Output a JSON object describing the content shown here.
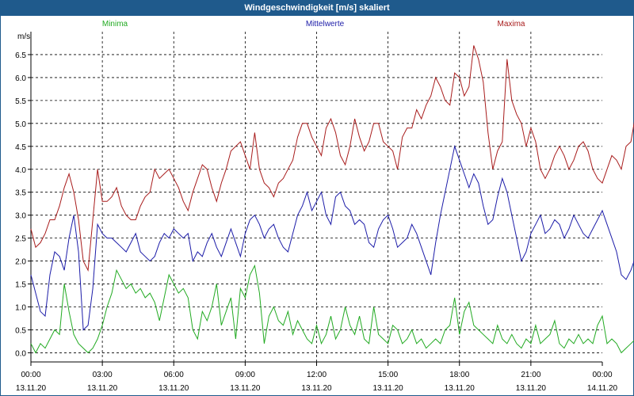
{
  "window": {
    "title": "Windgeschwindigkeit [m/s] skaliert"
  },
  "chart_data": {
    "type": "line",
    "title": "Windgeschwindigkeit [m/s] skaliert",
    "ylabel": "m/s",
    "ylim": [
      -0.2,
      7.0
    ],
    "yticks": [
      "0.0",
      "0.5",
      "1.0",
      "1.5",
      "2.0",
      "2.5",
      "3.0",
      "3.5",
      "4.0",
      "4.5",
      "5.0",
      "5.5",
      "6.0",
      "6.5"
    ],
    "xticks": [
      {
        "time": "00:00",
        "date": "13.11.20"
      },
      {
        "time": "03:00",
        "date": "13.11.20"
      },
      {
        "time": "06:00",
        "date": "13.11.20"
      },
      {
        "time": "09:00",
        "date": "13.11.20"
      },
      {
        "time": "12:00",
        "date": "13.11.20"
      },
      {
        "time": "15:00",
        "date": "13.11.20"
      },
      {
        "time": "18:00",
        "date": "13.11.20"
      },
      {
        "time": "21:00",
        "date": "13.11.20"
      },
      {
        "time": "00:00",
        "date": "14.11.20"
      }
    ],
    "grid": true,
    "legend_position": "top",
    "series": [
      {
        "name": "Minima",
        "color": "#22aa22",
        "x_start_hour": 0,
        "x_step_hours": 0.2,
        "values": [
          0.2,
          0.0,
          0.2,
          0.1,
          0.3,
          0.5,
          0.4,
          1.5,
          0.9,
          0.4,
          0.2,
          0.1,
          0.0,
          0.1,
          0.3,
          0.6,
          1.0,
          1.3,
          1.8,
          1.6,
          1.4,
          1.5,
          1.3,
          1.4,
          1.2,
          1.3,
          1.1,
          0.7,
          1.2,
          1.7,
          1.5,
          1.3,
          1.4,
          1.2,
          0.5,
          0.3,
          0.9,
          0.7,
          1.0,
          1.5,
          0.6,
          0.9,
          1.2,
          0.3,
          1.4,
          1.2,
          1.7,
          1.9,
          1.3,
          0.2,
          0.8,
          1.0,
          0.7,
          0.6,
          0.9,
          0.4,
          0.7,
          0.5,
          0.3,
          0.2,
          0.6,
          0.2,
          0.4,
          0.8,
          0.3,
          0.5,
          1.0,
          0.6,
          0.4,
          0.8,
          0.3,
          0.2,
          1.0,
          0.4,
          0.3,
          0.2,
          0.6,
          0.5,
          0.2,
          0.3,
          0.5,
          0.2,
          0.3,
          0.1,
          0.2,
          0.3,
          0.2,
          0.5,
          0.6,
          1.2,
          0.4,
          0.9,
          1.1,
          0.6,
          0.5,
          0.4,
          0.3,
          0.2,
          0.6,
          0.3,
          0.2,
          0.4,
          0.2,
          0.1,
          0.3,
          0.2,
          0.6,
          0.2,
          0.3,
          0.4,
          0.7,
          0.2,
          0.1,
          0.3,
          0.2,
          0.4,
          0.2,
          0.3,
          0.2,
          0.6,
          0.8,
          0.2,
          0.3,
          0.2,
          0.0,
          0.1,
          0.2,
          0.3,
          0.1,
          0.4,
          0.6,
          0.3,
          0.1,
          0.2,
          0.4,
          0.3,
          0.6,
          0.2,
          0.3,
          0.5,
          0.2,
          1.0,
          0.5,
          0.3,
          0.9,
          0.4,
          0.3,
          1.3,
          0.6,
          0.4,
          0.2,
          0.3,
          0.6,
          0.4,
          0.5,
          0.3,
          0.2,
          0.5,
          0.3,
          0.2,
          0.4,
          0.6,
          0.5,
          1.3,
          0.6,
          0.4,
          0.6,
          0.3,
          0.2,
          0.5,
          0.9,
          0.4,
          0.8,
          0.5,
          0.7,
          0.9,
          0.4,
          0.5,
          0.2,
          0.4,
          0.6,
          0.4,
          0.2,
          0.6,
          0.3,
          0.2,
          0.5,
          0.6,
          1.1,
          0.3,
          0.2,
          0.6,
          0.4,
          0.1,
          0.2,
          0.9,
          1.1,
          0.5,
          0.6,
          1.0,
          0.4,
          0.7,
          0.2,
          0.4,
          0.9,
          0.8,
          1.4,
          1.2,
          1.8,
          0.7,
          1.3,
          0.7,
          0.6,
          0.5,
          0.9,
          0.8,
          0.7,
          0.5,
          0.8
        ]
      },
      {
        "name": "Mittelwerte",
        "color": "#1c1ca8",
        "x_start_hour": 0,
        "x_step_hours": 0.2,
        "values": [
          1.7,
          1.3,
          0.9,
          0.8,
          1.7,
          2.2,
          2.1,
          1.8,
          2.5,
          3.0,
          2.2,
          0.5,
          0.6,
          1.4,
          2.8,
          2.6,
          2.5,
          2.5,
          2.4,
          2.3,
          2.2,
          2.4,
          2.6,
          2.2,
          2.1,
          2.0,
          2.1,
          2.4,
          2.6,
          2.5,
          2.7,
          2.6,
          2.5,
          2.6,
          2.0,
          2.2,
          2.1,
          2.4,
          2.6,
          2.3,
          2.1,
          2.4,
          2.7,
          2.4,
          2.1,
          2.6,
          2.9,
          3.0,
          2.8,
          2.5,
          2.7,
          2.8,
          2.5,
          2.3,
          2.2,
          2.6,
          3.0,
          3.2,
          3.5,
          3.1,
          3.3,
          3.5,
          3.0,
          2.8,
          3.4,
          3.5,
          3.2,
          3.1,
          2.8,
          2.9,
          2.8,
          2.4,
          2.3,
          2.7,
          2.9,
          3.0,
          2.7,
          2.3,
          2.4,
          2.5,
          2.8,
          2.6,
          2.3,
          2.0,
          1.7,
          2.4,
          3.0,
          3.5,
          4.0,
          4.5,
          4.2,
          3.9,
          3.6,
          3.9,
          3.7,
          3.2,
          2.8,
          2.9,
          3.4,
          3.8,
          3.5,
          3.0,
          2.5,
          2.0,
          2.2,
          2.6,
          2.8,
          3.0,
          2.6,
          2.7,
          2.9,
          2.8,
          2.5,
          2.7,
          3.0,
          2.8,
          2.6,
          2.5,
          2.7,
          2.9,
          3.1,
          2.8,
          2.5,
          2.2,
          1.7,
          1.6,
          1.8,
          2.1,
          2.3,
          2.1,
          2.3,
          2.6,
          2.3,
          2.1,
          2.5,
          2.8,
          2.6,
          2.9,
          2.5,
          2.2,
          2.1,
          2.4,
          2.2,
          2.5,
          2.6,
          2.9,
          2.7,
          2.6,
          2.5,
          2.2,
          2.4,
          2.8,
          2.6,
          2.3,
          2.5,
          2.4,
          2.2,
          2.3,
          2.6,
          2.5,
          2.7,
          2.6,
          2.8,
          3.0,
          2.5,
          2.0,
          2.2,
          1.9,
          1.9,
          1.9,
          2.0,
          2.6,
          2.9,
          2.7,
          2.4,
          2.2,
          2.5,
          2.3,
          2.1,
          2.0,
          2.2,
          2.5,
          2.4,
          2.8,
          2.5,
          2.3,
          2.1,
          2.2,
          2.5,
          2.7,
          2.8,
          2.2,
          2.0,
          1.7,
          2.2,
          2.7,
          2.2,
          1.8,
          2.2,
          2.5,
          2.6,
          2.8,
          3.5,
          3.5,
          3.4,
          3.0,
          2.7,
          2.9,
          3.0,
          2.5,
          2.8
        ]
      },
      {
        "name": "Maxima",
        "color": "#a81c1c",
        "x_start_hour": 0,
        "x_step_hours": 0.2,
        "values": [
          2.7,
          2.3,
          2.4,
          2.6,
          2.9,
          2.9,
          3.2,
          3.6,
          3.9,
          3.5,
          2.9,
          2.0,
          1.8,
          2.9,
          4.0,
          3.3,
          3.3,
          3.4,
          3.6,
          3.2,
          3.0,
          2.9,
          2.9,
          3.2,
          3.4,
          3.5,
          4.0,
          3.8,
          3.9,
          4.0,
          3.8,
          3.6,
          3.3,
          3.1,
          3.5,
          3.8,
          4.1,
          4.0,
          3.6,
          3.3,
          3.7,
          4.0,
          4.4,
          4.5,
          4.6,
          4.3,
          4.0,
          4.8,
          4.0,
          3.7,
          3.6,
          3.4,
          3.7,
          3.8,
          4.0,
          4.2,
          4.7,
          5.0,
          5.0,
          4.7,
          4.5,
          4.3,
          4.9,
          5.1,
          4.8,
          4.3,
          4.1,
          4.5,
          5.1,
          4.7,
          4.4,
          4.6,
          5.0,
          5.0,
          4.6,
          4.5,
          4.4,
          4.0,
          4.7,
          4.9,
          4.9,
          5.3,
          5.1,
          5.4,
          5.6,
          6.0,
          5.8,
          5.5,
          5.4,
          6.1,
          6.0,
          5.6,
          5.8,
          6.7,
          6.4,
          5.9,
          4.8,
          4.0,
          4.4,
          4.6,
          6.4,
          5.5,
          5.2,
          5.0,
          4.5,
          4.9,
          4.6,
          4.0,
          3.8,
          4.0,
          4.3,
          4.5,
          4.3,
          4.0,
          4.2,
          4.5,
          4.6,
          4.4,
          4.0,
          3.8,
          3.7,
          4.0,
          4.3,
          4.2,
          4.0,
          4.5,
          4.6,
          5.2,
          4.8,
          4.4,
          4.2,
          4.6,
          4.3,
          4.8,
          5.0,
          5.2,
          4.0,
          3.6,
          4.4,
          5.3,
          4.8,
          4.3,
          4.6,
          4.8,
          5.2,
          5.5,
          5.7,
          5.2,
          5.1,
          4.9,
          4.5,
          4.3,
          4.5,
          4.6,
          4.9,
          5.2,
          5.4,
          5.2,
          5.0,
          5.3,
          5.6,
          5.9,
          5.1,
          4.2,
          3.5,
          3.0,
          3.2,
          3.6,
          4.2,
          5.2,
          5.4,
          5.1,
          4.8,
          4.5,
          4.3,
          4.0,
          3.8,
          3.7,
          3.6,
          3.6,
          3.5,
          3.8,
          4.2,
          5.0,
          6.1,
          5.5,
          3.3,
          2.7,
          3.5,
          3.3,
          3.1,
          2.9,
          2.8,
          2.7,
          3.8,
          4.0,
          4.5,
          5.0,
          5.4,
          5.3,
          5.2,
          5.5,
          5.7,
          6.0,
          5.2,
          5.5,
          5.9,
          4.7,
          4.6,
          5.6
        ]
      }
    ]
  }
}
